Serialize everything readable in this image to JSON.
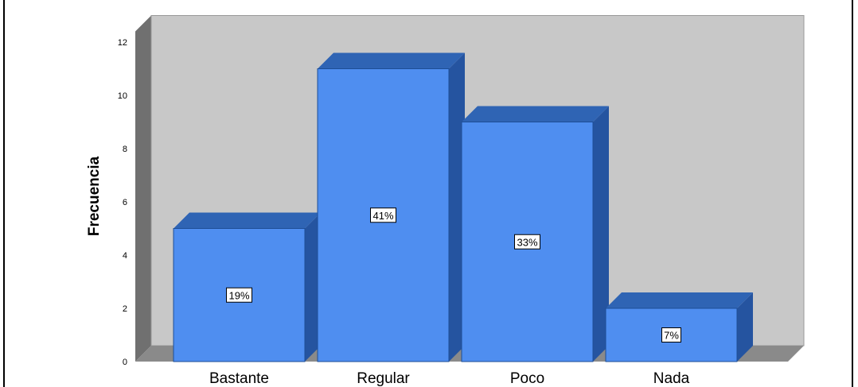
{
  "chart_data": {
    "type": "bar",
    "ylabel": "Frecuencia",
    "categories": [
      "Bastante",
      "Regular",
      "Poco",
      "Nada"
    ],
    "values": [
      5,
      11,
      9,
      2
    ],
    "data_labels": [
      "19%",
      "41%",
      "33%",
      "7%"
    ],
    "yticks": [
      0,
      2,
      4,
      6,
      8,
      10,
      12
    ],
    "ylim": [
      0,
      13
    ],
    "grid": false,
    "colors": {
      "bar_front": "#4f8ef0",
      "bar_side": "#2554a0",
      "bar_top": "#2f64b4",
      "wall": "#c8c8c8",
      "wall_left": "#707070",
      "floor": "#8a8a8a"
    }
  }
}
